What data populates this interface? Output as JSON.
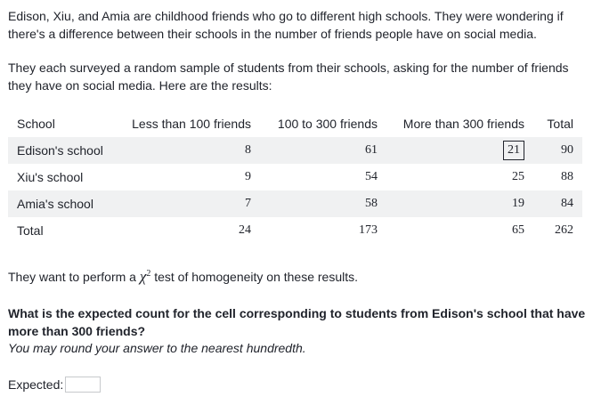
{
  "intro": {
    "paragraph1": "Edison, Xiu, and Amia are childhood friends who go to different high schools. They were wondering if there's a difference between their schools in the number of friends people have on social media.",
    "paragraph2": "They each surveyed a random sample of students from their schools, asking for the number of friends they have on social media. Here are the results:"
  },
  "table": {
    "headers": [
      "School",
      "Less than 100 friends",
      "100 to 300 friends",
      "More than 300 friends",
      "Total"
    ],
    "rows": [
      {
        "school": "Edison's school",
        "less100": "8",
        "mid": "61",
        "more300": "21",
        "total": "90"
      },
      {
        "school": "Xiu's school",
        "less100": "9",
        "mid": "54",
        "more300": "25",
        "total": "88"
      },
      {
        "school": "Amia's school",
        "less100": "7",
        "mid": "58",
        "more300": "19",
        "total": "84"
      },
      {
        "school": "Total",
        "less100": "24",
        "mid": "173",
        "more300": "65",
        "total": "262"
      }
    ]
  },
  "test_statement": {
    "before": "They want to perform a",
    "symbol": "χ",
    "exponent": "2",
    "after": "test of homogeneity on these results."
  },
  "question": "What is the expected count for the cell corresponding to students from Edison's school that have more than 300 friends?",
  "hint": "You may round your answer to the nearest hundredth.",
  "answer": {
    "label": "Expected:",
    "value": ""
  }
}
